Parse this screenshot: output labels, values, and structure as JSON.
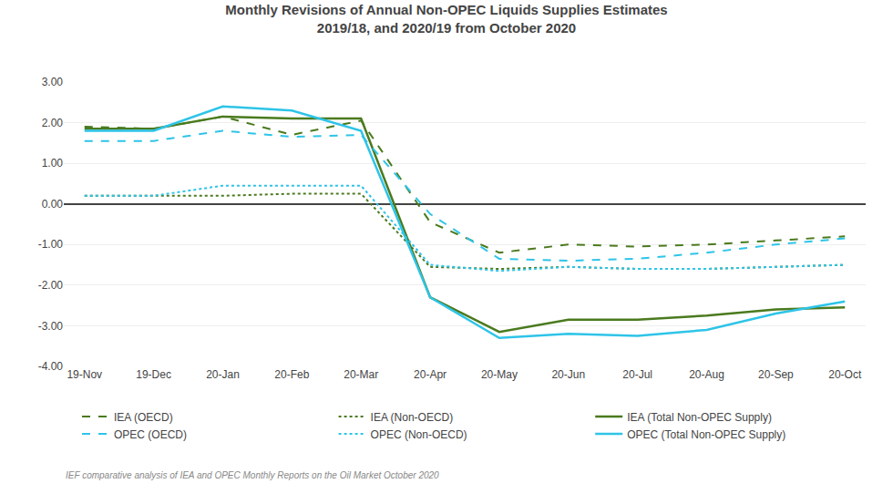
{
  "chart_data": {
    "type": "line",
    "title": "Monthly Revisions of Annual Non-OPEC Liquids Supplies Estimates",
    "subtitle": "2019/18, and 2020/19 from October 2020",
    "annotations": [
      "IEF comparative analysis of IEA and OPEC Monthly Reports on the Oil Market October 2020"
    ],
    "categories": [
      "19-Nov",
      "19-Dec",
      "20-Jan",
      "20-Feb",
      "20-Mar",
      "20-Apr",
      "20-May",
      "20-Jun",
      "20-Jul",
      "20-Aug",
      "20-Sep",
      "20-Oct"
    ],
    "series": [
      {
        "name": "IEA (OECD)",
        "color": "#4a7a1e",
        "line_style": "dashed",
        "values": [
          1.9,
          1.85,
          2.15,
          1.7,
          2.05,
          -0.45,
          -1.2,
          -1.0,
          -1.05,
          -1.0,
          -0.9,
          -0.8
        ]
      },
      {
        "name": "IEA (Non-OECD)",
        "color": "#4a7a1e",
        "line_style": "dotted",
        "values": [
          0.2,
          0.2,
          0.2,
          0.25,
          0.25,
          -1.55,
          -1.6,
          -1.55,
          -1.6,
          -1.6,
          -1.55,
          -1.5
        ]
      },
      {
        "name": "IEA (Total Non-OPEC Supply)",
        "color": "#4a7a1e",
        "line_style": "solid",
        "values": [
          1.85,
          1.85,
          2.15,
          2.1,
          2.1,
          -2.3,
          -3.15,
          -2.85,
          -2.85,
          -2.75,
          -2.6,
          -2.55
        ]
      },
      {
        "name": "OPEC (OECD)",
        "color": "#2ec4e8",
        "line_style": "dashed",
        "values": [
          1.55,
          1.55,
          1.8,
          1.65,
          1.7,
          -0.25,
          -1.35,
          -1.4,
          -1.35,
          -1.2,
          -1.0,
          -0.85
        ]
      },
      {
        "name": "OPEC (Non-OECD)",
        "color": "#2ec4e8",
        "line_style": "dotted",
        "values": [
          0.2,
          0.2,
          0.45,
          0.45,
          0.45,
          -1.5,
          -1.65,
          -1.55,
          -1.6,
          -1.6,
          -1.55,
          -1.5
        ]
      },
      {
        "name": "OPEC (Total Non-OPEC Supply)",
        "color": "#2ec4e8",
        "line_style": "solid",
        "values": [
          1.8,
          1.8,
          2.4,
          2.3,
          1.8,
          -2.3,
          -3.3,
          -3.2,
          -3.25,
          -3.1,
          -2.7,
          -2.4
        ]
      }
    ],
    "ylim": [
      -4.0,
      3.0
    ],
    "yticks": [
      {
        "value": -4.0,
        "label": "-4.00"
      },
      {
        "value": -3.0,
        "label": "-3.00"
      },
      {
        "value": -2.0,
        "label": "-2.00"
      },
      {
        "value": -1.0,
        "label": "-1.00"
      },
      {
        "value": 0.0,
        "label": "0.00"
      },
      {
        "value": 1.0,
        "label": "1.00"
      },
      {
        "value": 2.0,
        "label": "2.00"
      },
      {
        "value": 3.0,
        "label": "3.00"
      }
    ],
    "grid": true,
    "legend": "bottom"
  }
}
